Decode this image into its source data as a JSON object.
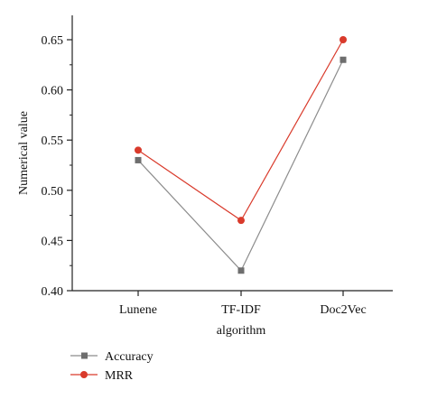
{
  "chart_data": {
    "type": "line",
    "categories": [
      "Lunene",
      "TF-IDF",
      "Doc2Vec"
    ],
    "xlabel": "algorithm",
    "ylabel": "Numerical value",
    "ylim": [
      0.4,
      0.65
    ],
    "yticks": [
      "0.40",
      "0.45",
      "0.50",
      "0.55",
      "0.60",
      "0.65"
    ],
    "ytick_values": [
      0.4,
      0.45,
      0.5,
      0.55,
      0.6,
      0.65
    ],
    "grid": false,
    "legend_position": "bottom-left",
    "series": [
      {
        "name": "Accuracy",
        "values": [
          0.53,
          0.42,
          0.63
        ],
        "color": "#8c8c8c",
        "marker": "square"
      },
      {
        "name": "MRR",
        "values": [
          0.54,
          0.47,
          0.65
        ],
        "color": "#d93a2b",
        "marker": "circle"
      }
    ]
  }
}
